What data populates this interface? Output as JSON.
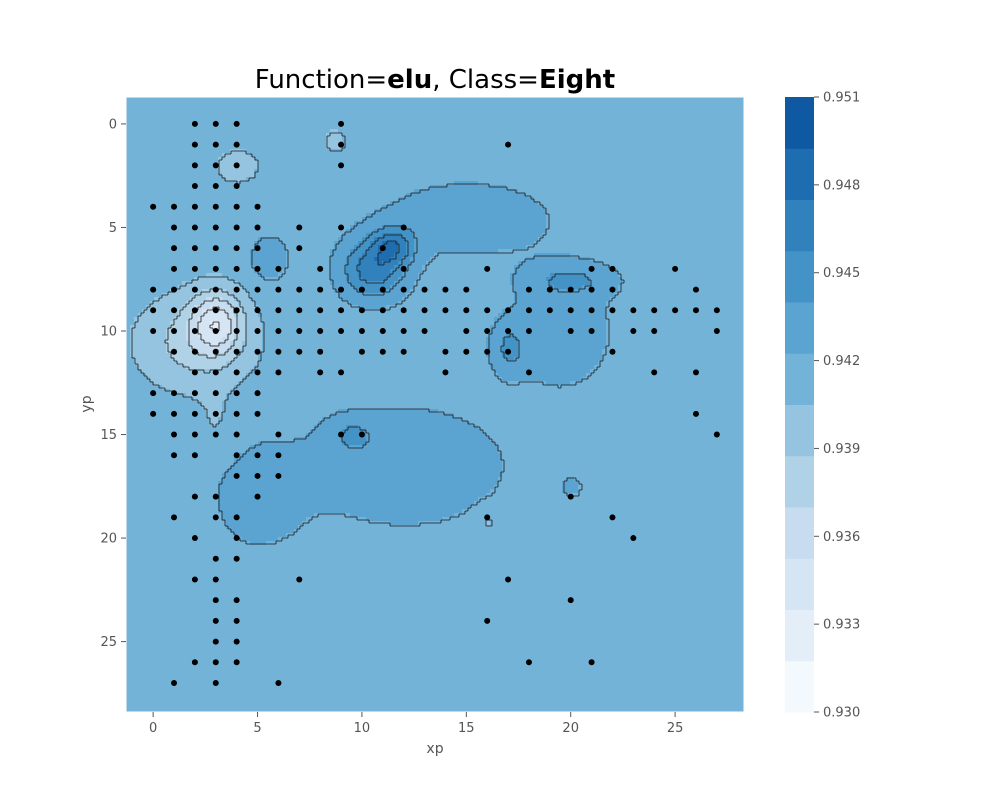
{
  "chart_data": {
    "type": "contour",
    "title": {
      "prefix": "Function=",
      "function_name": "elu",
      "separator": ", Class=",
      "class_name": "Eight"
    },
    "xlabel": "xp",
    "ylabel": "yp",
    "xlim": [
      -1.3,
      28.3
    ],
    "ylim": [
      28.4,
      -1.3
    ],
    "y_inverted": true,
    "x_ticks": [
      0,
      5,
      10,
      15,
      20,
      25
    ],
    "y_ticks": [
      0,
      5,
      10,
      15,
      20,
      25
    ],
    "colorbar": {
      "colormap": "Blues",
      "min": 0.93,
      "max": 0.951,
      "levels": [
        0.93,
        0.93175,
        0.9335,
        0.93525,
        0.937,
        0.93875,
        0.9405,
        0.94225,
        0.944,
        0.94575,
        0.9475,
        0.94925,
        0.951
      ],
      "level_colors": [
        "#f4f9fe",
        "#e3eef8",
        "#d6e5f4",
        "#c7dcef",
        "#b0d2e7",
        "#94c4df",
        "#74b3d8",
        "#5ba3d0",
        "#4493c7",
        "#3181bd",
        "#1f6db1",
        "#0e59a2",
        "#083b7c"
      ],
      "tick_labels": [
        "0.930",
        "0.933",
        "0.936",
        "0.939",
        "0.942",
        "0.945",
        "0.948",
        "0.951"
      ],
      "tick_values": [
        0.93,
        0.933,
        0.936,
        0.939,
        0.942,
        0.945,
        0.948,
        0.951
      ]
    },
    "background_value": 0.9415,
    "field_features": [
      {
        "kind": "high",
        "x": 10.5,
        "y": 7.0,
        "value": 0.9468,
        "sx": 1.5,
        "sy": 1.4
      },
      {
        "kind": "high",
        "x": 11.5,
        "y": 5.8,
        "value": 0.9458,
        "sx": 1.0,
        "sy": 0.9
      },
      {
        "kind": "high",
        "x": 9.5,
        "y": 15.0,
        "value": 0.9435,
        "sx": 1.1,
        "sy": 0.8
      },
      {
        "kind": "high",
        "x": 12.0,
        "y": 16.5,
        "value": 0.9433,
        "sx": 5.0,
        "sy": 3.0
      },
      {
        "kind": "high",
        "x": 5.0,
        "y": 18.0,
        "value": 0.943,
        "sx": 2.2,
        "sy": 2.6
      },
      {
        "kind": "high",
        "x": 15.0,
        "y": 4.5,
        "value": 0.943,
        "sx": 4.5,
        "sy": 2.0
      },
      {
        "kind": "high",
        "x": 19.5,
        "y": 10.0,
        "value": 0.9432,
        "sx": 2.5,
        "sy": 2.8
      },
      {
        "kind": "high",
        "x": 17.0,
        "y": 10.8,
        "value": 0.944,
        "sx": 0.8,
        "sy": 1.2
      },
      {
        "kind": "high",
        "x": 20.0,
        "y": 7.5,
        "value": 0.9438,
        "sx": 2.0,
        "sy": 0.8
      },
      {
        "kind": "high",
        "x": 5.5,
        "y": 6.5,
        "value": 0.9432,
        "sx": 1.0,
        "sy": 1.2
      },
      {
        "kind": "high",
        "x": 20.0,
        "y": 17.5,
        "value": 0.9428,
        "sx": 0.5,
        "sy": 0.5
      },
      {
        "kind": "low",
        "x": 3.0,
        "y": 9.5,
        "value": 0.936,
        "sx": 1.2,
        "sy": 1.5
      },
      {
        "kind": "low",
        "x": 2.0,
        "y": 10.5,
        "value": 0.938,
        "sx": 2.8,
        "sy": 2.3
      },
      {
        "kind": "low",
        "x": 4.0,
        "y": 2.0,
        "value": 0.94,
        "sx": 1.5,
        "sy": 1.2
      },
      {
        "kind": "low",
        "x": 8.7,
        "y": 0.8,
        "value": 0.94,
        "sx": 0.7,
        "sy": 0.8
      },
      {
        "kind": "low",
        "x": 16.0,
        "y": 19.2,
        "value": 0.94,
        "sx": 0.6,
        "sy": 0.6
      },
      {
        "kind": "low",
        "x": 3.0,
        "y": 14.5,
        "value": 0.9405,
        "sx": 1.0,
        "sy": 1.5
      }
    ],
    "points": [
      {
        "x": 2,
        "y": 0
      },
      {
        "x": 3,
        "y": 0
      },
      {
        "x": 4,
        "y": 0
      },
      {
        "x": 9,
        "y": 0
      },
      {
        "x": 2,
        "y": 1
      },
      {
        "x": 3,
        "y": 1
      },
      {
        "x": 4,
        "y": 1
      },
      {
        "x": 9,
        "y": 1
      },
      {
        "x": 17,
        "y": 1
      },
      {
        "x": 2,
        "y": 2
      },
      {
        "x": 3,
        "y": 2
      },
      {
        "x": 4,
        "y": 2
      },
      {
        "x": 9,
        "y": 2
      },
      {
        "x": 2,
        "y": 3
      },
      {
        "x": 3,
        "y": 3
      },
      {
        "x": 4,
        "y": 3
      },
      {
        "x": 0,
        "y": 4
      },
      {
        "x": 1,
        "y": 4
      },
      {
        "x": 2,
        "y": 4
      },
      {
        "x": 3,
        "y": 4
      },
      {
        "x": 4,
        "y": 4
      },
      {
        "x": 5,
        "y": 4
      },
      {
        "x": 1,
        "y": 5
      },
      {
        "x": 2,
        "y": 5
      },
      {
        "x": 3,
        "y": 5
      },
      {
        "x": 4,
        "y": 5
      },
      {
        "x": 5,
        "y": 5
      },
      {
        "x": 7,
        "y": 5
      },
      {
        "x": 9,
        "y": 5
      },
      {
        "x": 12,
        "y": 5
      },
      {
        "x": 1,
        "y": 6
      },
      {
        "x": 2,
        "y": 6
      },
      {
        "x": 3,
        "y": 6
      },
      {
        "x": 4,
        "y": 6
      },
      {
        "x": 5,
        "y": 6
      },
      {
        "x": 7,
        "y": 6
      },
      {
        "x": 11,
        "y": 6
      },
      {
        "x": 1,
        "y": 7
      },
      {
        "x": 2,
        "y": 7
      },
      {
        "x": 3,
        "y": 7
      },
      {
        "x": 4,
        "y": 7
      },
      {
        "x": 5,
        "y": 7
      },
      {
        "x": 6,
        "y": 7
      },
      {
        "x": 8,
        "y": 7
      },
      {
        "x": 12,
        "y": 7
      },
      {
        "x": 16,
        "y": 7
      },
      {
        "x": 21,
        "y": 7
      },
      {
        "x": 22,
        "y": 7
      },
      {
        "x": 25,
        "y": 7
      },
      {
        "x": 0,
        "y": 8
      },
      {
        "x": 1,
        "y": 8
      },
      {
        "x": 2,
        "y": 8
      },
      {
        "x": 3,
        "y": 8
      },
      {
        "x": 4,
        "y": 8
      },
      {
        "x": 5,
        "y": 8
      },
      {
        "x": 6,
        "y": 8
      },
      {
        "x": 7,
        "y": 8
      },
      {
        "x": 8,
        "y": 8
      },
      {
        "x": 9,
        "y": 8
      },
      {
        "x": 10,
        "y": 8
      },
      {
        "x": 11,
        "y": 8
      },
      {
        "x": 12,
        "y": 8
      },
      {
        "x": 13,
        "y": 8
      },
      {
        "x": 14,
        "y": 8
      },
      {
        "x": 15,
        "y": 8
      },
      {
        "x": 18,
        "y": 8
      },
      {
        "x": 19,
        "y": 8
      },
      {
        "x": 20,
        "y": 8
      },
      {
        "x": 21,
        "y": 8
      },
      {
        "x": 22,
        "y": 8
      },
      {
        "x": 26,
        "y": 8
      },
      {
        "x": 0,
        "y": 9
      },
      {
        "x": 1,
        "y": 9
      },
      {
        "x": 2,
        "y": 9
      },
      {
        "x": 3,
        "y": 9
      },
      {
        "x": 4,
        "y": 9
      },
      {
        "x": 5,
        "y": 9
      },
      {
        "x": 6,
        "y": 9
      },
      {
        "x": 7,
        "y": 9
      },
      {
        "x": 8,
        "y": 9
      },
      {
        "x": 9,
        "y": 9
      },
      {
        "x": 10,
        "y": 9
      },
      {
        "x": 11,
        "y": 9
      },
      {
        "x": 12,
        "y": 9
      },
      {
        "x": 13,
        "y": 9
      },
      {
        "x": 14,
        "y": 9
      },
      {
        "x": 15,
        "y": 9
      },
      {
        "x": 16,
        "y": 9
      },
      {
        "x": 17,
        "y": 9
      },
      {
        "x": 18,
        "y": 9
      },
      {
        "x": 19,
        "y": 9
      },
      {
        "x": 20,
        "y": 9
      },
      {
        "x": 21,
        "y": 9
      },
      {
        "x": 22,
        "y": 9
      },
      {
        "x": 23,
        "y": 9
      },
      {
        "x": 24,
        "y": 9
      },
      {
        "x": 25,
        "y": 9
      },
      {
        "x": 26,
        "y": 9
      },
      {
        "x": 27,
        "y": 9
      },
      {
        "x": 0,
        "y": 10
      },
      {
        "x": 1,
        "y": 10
      },
      {
        "x": 2,
        "y": 10
      },
      {
        "x": 3,
        "y": 10
      },
      {
        "x": 4,
        "y": 10
      },
      {
        "x": 5,
        "y": 10
      },
      {
        "x": 6,
        "y": 10
      },
      {
        "x": 7,
        "y": 10
      },
      {
        "x": 8,
        "y": 10
      },
      {
        "x": 9,
        "y": 10
      },
      {
        "x": 10,
        "y": 10
      },
      {
        "x": 11,
        "y": 10
      },
      {
        "x": 12,
        "y": 10
      },
      {
        "x": 13,
        "y": 10
      },
      {
        "x": 15,
        "y": 10
      },
      {
        "x": 16,
        "y": 10
      },
      {
        "x": 17,
        "y": 10
      },
      {
        "x": 18,
        "y": 10
      },
      {
        "x": 20,
        "y": 10
      },
      {
        "x": 21,
        "y": 10
      },
      {
        "x": 23,
        "y": 10
      },
      {
        "x": 24,
        "y": 10
      },
      {
        "x": 27,
        "y": 10
      },
      {
        "x": 1,
        "y": 11
      },
      {
        "x": 2,
        "y": 11
      },
      {
        "x": 3,
        "y": 11
      },
      {
        "x": 4,
        "y": 11
      },
      {
        "x": 5,
        "y": 11
      },
      {
        "x": 6,
        "y": 11
      },
      {
        "x": 7,
        "y": 11
      },
      {
        "x": 8,
        "y": 11
      },
      {
        "x": 10,
        "y": 11
      },
      {
        "x": 11,
        "y": 11
      },
      {
        "x": 12,
        "y": 11
      },
      {
        "x": 14,
        "y": 11
      },
      {
        "x": 15,
        "y": 11
      },
      {
        "x": 16,
        "y": 11
      },
      {
        "x": 17,
        "y": 11
      },
      {
        "x": 22,
        "y": 11
      },
      {
        "x": 2,
        "y": 12
      },
      {
        "x": 3,
        "y": 12
      },
      {
        "x": 4,
        "y": 12
      },
      {
        "x": 5,
        "y": 12
      },
      {
        "x": 6,
        "y": 12
      },
      {
        "x": 8,
        "y": 12
      },
      {
        "x": 9,
        "y": 12
      },
      {
        "x": 14,
        "y": 12
      },
      {
        "x": 18,
        "y": 12
      },
      {
        "x": 24,
        "y": 12
      },
      {
        "x": 26,
        "y": 12
      },
      {
        "x": 0,
        "y": 13
      },
      {
        "x": 1,
        "y": 13
      },
      {
        "x": 2,
        "y": 13
      },
      {
        "x": 3,
        "y": 13
      },
      {
        "x": 4,
        "y": 13
      },
      {
        "x": 5,
        "y": 13
      },
      {
        "x": 0,
        "y": 14
      },
      {
        "x": 1,
        "y": 14
      },
      {
        "x": 2,
        "y": 14
      },
      {
        "x": 3,
        "y": 14
      },
      {
        "x": 4,
        "y": 14
      },
      {
        "x": 5,
        "y": 14
      },
      {
        "x": 26,
        "y": 14
      },
      {
        "x": 1,
        "y": 15
      },
      {
        "x": 2,
        "y": 15
      },
      {
        "x": 3,
        "y": 15
      },
      {
        "x": 4,
        "y": 15
      },
      {
        "x": 6,
        "y": 15
      },
      {
        "x": 9,
        "y": 15
      },
      {
        "x": 10,
        "y": 15
      },
      {
        "x": 27,
        "y": 15
      },
      {
        "x": 1,
        "y": 16
      },
      {
        "x": 2,
        "y": 16
      },
      {
        "x": 4,
        "y": 16
      },
      {
        "x": 5,
        "y": 16
      },
      {
        "x": 6,
        "y": 16
      },
      {
        "x": 4,
        "y": 17
      },
      {
        "x": 5,
        "y": 17
      },
      {
        "x": 6,
        "y": 17
      },
      {
        "x": 2,
        "y": 18
      },
      {
        "x": 3,
        "y": 18
      },
      {
        "x": 5,
        "y": 18
      },
      {
        "x": 20,
        "y": 18
      },
      {
        "x": 1,
        "y": 19
      },
      {
        "x": 3,
        "y": 19
      },
      {
        "x": 4,
        "y": 19
      },
      {
        "x": 16,
        "y": 19
      },
      {
        "x": 22,
        "y": 19
      },
      {
        "x": 2,
        "y": 20
      },
      {
        "x": 4,
        "y": 20
      },
      {
        "x": 23,
        "y": 20
      },
      {
        "x": 3,
        "y": 21
      },
      {
        "x": 4,
        "y": 21
      },
      {
        "x": 2,
        "y": 22
      },
      {
        "x": 3,
        "y": 22
      },
      {
        "x": 7,
        "y": 22
      },
      {
        "x": 17,
        "y": 22
      },
      {
        "x": 3,
        "y": 23
      },
      {
        "x": 4,
        "y": 23
      },
      {
        "x": 20,
        "y": 23
      },
      {
        "x": 3,
        "y": 24
      },
      {
        "x": 4,
        "y": 24
      },
      {
        "x": 16,
        "y": 24
      },
      {
        "x": 3,
        "y": 25
      },
      {
        "x": 4,
        "y": 25
      },
      {
        "x": 2,
        "y": 26
      },
      {
        "x": 3,
        "y": 26
      },
      {
        "x": 4,
        "y": 26
      },
      {
        "x": 18,
        "y": 26
      },
      {
        "x": 21,
        "y": 26
      },
      {
        "x": 1,
        "y": 27
      },
      {
        "x": 3,
        "y": 27
      },
      {
        "x": 6,
        "y": 27
      }
    ]
  }
}
